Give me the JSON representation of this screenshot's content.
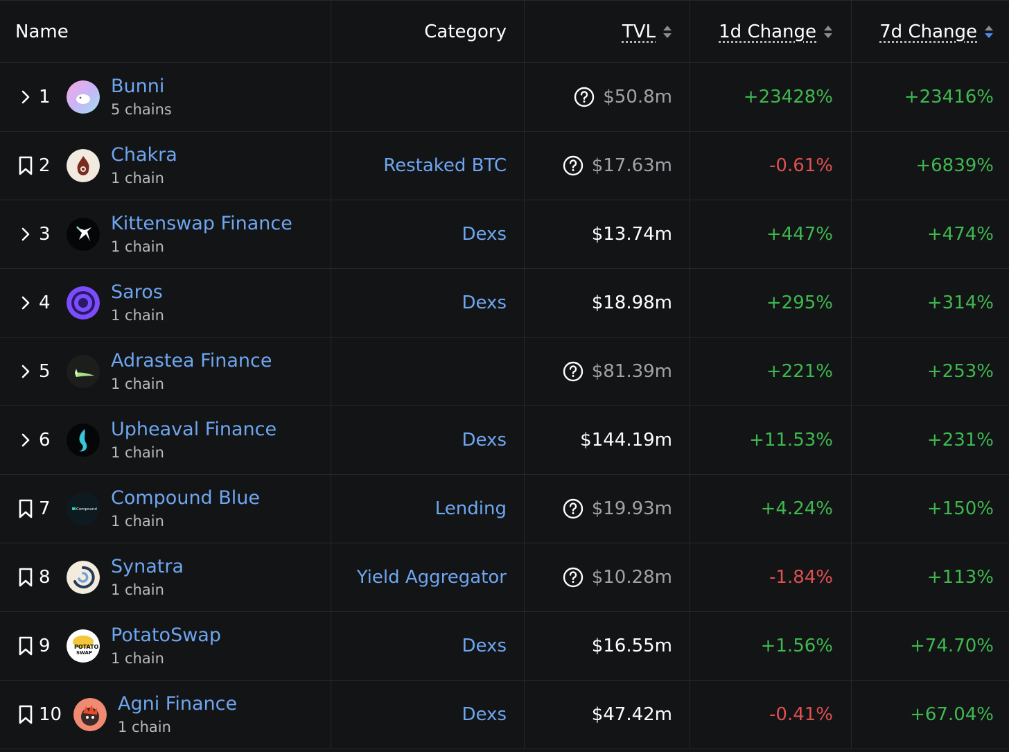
{
  "header": {
    "name": "Name",
    "category": "Category",
    "tvl": "TVL",
    "d1": "1d Change",
    "d7": "7d Change"
  },
  "colors": {
    "background": "#131416",
    "link": "#6ea6f0",
    "positive": "#3fb84f",
    "negative": "#e05050",
    "muted": "#a0a3a8",
    "sort_active": "#4a8cf0"
  },
  "rows": [
    {
      "rank": "1",
      "name": "Bunni",
      "chains": "5 chains",
      "category": "",
      "tvl": "$50.8m",
      "tvl_question": true,
      "d1": "+23428%",
      "d7": "+23416%",
      "control": "chevron-right-icon"
    },
    {
      "rank": "2",
      "name": "Chakra",
      "chains": "1 chain",
      "category": "Restaked BTC",
      "tvl": "$17.63m",
      "tvl_question": true,
      "d1": "-0.61%",
      "d7": "+6839%",
      "control": "bookmark-icon"
    },
    {
      "rank": "3",
      "name": "Kittenswap Finance",
      "chains": "1 chain",
      "category": "Dexs",
      "tvl": "$13.74m",
      "tvl_question": false,
      "d1": "+447%",
      "d7": "+474%",
      "control": "chevron-right-icon"
    },
    {
      "rank": "4",
      "name": "Saros",
      "chains": "1 chain",
      "category": "Dexs",
      "tvl": "$18.98m",
      "tvl_question": false,
      "d1": "+295%",
      "d7": "+314%",
      "control": "chevron-right-icon"
    },
    {
      "rank": "5",
      "name": "Adrastea Finance",
      "chains": "1 chain",
      "category": "",
      "tvl": "$81.39m",
      "tvl_question": true,
      "d1": "+221%",
      "d7": "+253%",
      "control": "chevron-right-icon"
    },
    {
      "rank": "6",
      "name": "Upheaval Finance",
      "chains": "1 chain",
      "category": "Dexs",
      "tvl": "$144.19m",
      "tvl_question": false,
      "d1": "+11.53%",
      "d7": "+231%",
      "control": "chevron-right-icon"
    },
    {
      "rank": "7",
      "name": "Compound Blue",
      "chains": "1 chain",
      "category": "Lending",
      "tvl": "$19.93m",
      "tvl_question": true,
      "d1": "+4.24%",
      "d7": "+150%",
      "control": "bookmark-icon"
    },
    {
      "rank": "8",
      "name": "Synatra",
      "chains": "1 chain",
      "category": "Yield Aggregator",
      "tvl": "$10.28m",
      "tvl_question": true,
      "d1": "-1.84%",
      "d7": "+113%",
      "control": "bookmark-icon"
    },
    {
      "rank": "9",
      "name": "PotatoSwap",
      "chains": "1 chain",
      "category": "Dexs",
      "tvl": "$16.55m",
      "tvl_question": false,
      "d1": "+1.56%",
      "d7": "+74.70%",
      "control": "bookmark-icon"
    },
    {
      "rank": "10",
      "name": "Agni Finance",
      "chains": "1 chain",
      "category": "Dexs",
      "tvl": "$47.42m",
      "tvl_question": false,
      "d1": "-0.41%",
      "d7": "+67.04%",
      "control": "bookmark-icon"
    }
  ]
}
